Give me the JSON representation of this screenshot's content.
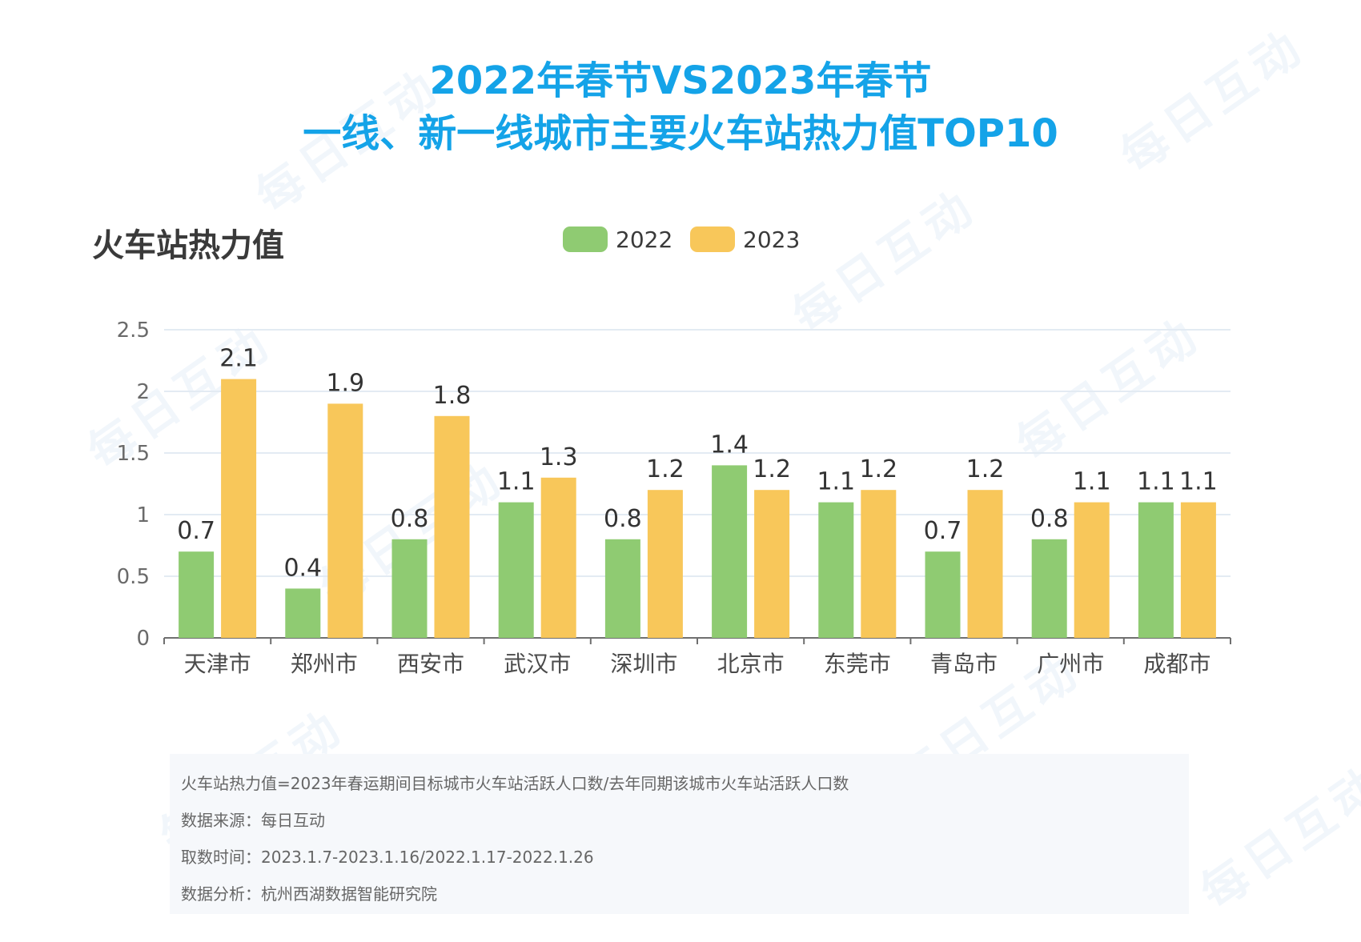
{
  "title_line1": "2022年春节VS2023年春节",
  "title_line2": "一线、新一线城市主要火车站热力值TOP10",
  "chart_label": "火车站热力值",
  "watermark_text": "每日互动",
  "colors": {
    "title": "#14a3e8",
    "series_2022": "#8fcb72",
    "series_2023": "#f8c75a"
  },
  "chart_data": {
    "type": "bar",
    "title": "2022年春节VS2023年春节 一线、新一线城市主要火车站热力值TOP10",
    "ylabel": "火车站热力值",
    "xlabel": "",
    "ylim": [
      0,
      2.5
    ],
    "yticks": [
      "0",
      "0.5",
      "1",
      "1.5",
      "2",
      "2.5"
    ],
    "grid": true,
    "legend": "top-center",
    "categories": [
      "天津市",
      "郑州市",
      "西安市",
      "武汉市",
      "深圳市",
      "北京市",
      "东莞市",
      "青岛市",
      "广州市",
      "成都市"
    ],
    "series": [
      {
        "name": "2022",
        "color": "#8fcb72",
        "values": [
          0.7,
          0.4,
          0.8,
          1.1,
          0.8,
          1.4,
          1.1,
          0.7,
          0.8,
          1.1
        ]
      },
      {
        "name": "2023",
        "color": "#f8c75a",
        "values": [
          2.1,
          1.9,
          1.8,
          1.3,
          1.2,
          1.2,
          1.2,
          1.2,
          1.1,
          1.1
        ]
      }
    ]
  },
  "notes": [
    "火车站热力值=2023年春运期间目标城市火车站活跃人口数/去年同期该城市火车站活跃人口数",
    "数据来源：每日互动",
    "取数时间：2023.1.7-2023.1.16/2022.1.17-2022.1.26",
    "数据分析：杭州西湖数据智能研究院"
  ]
}
